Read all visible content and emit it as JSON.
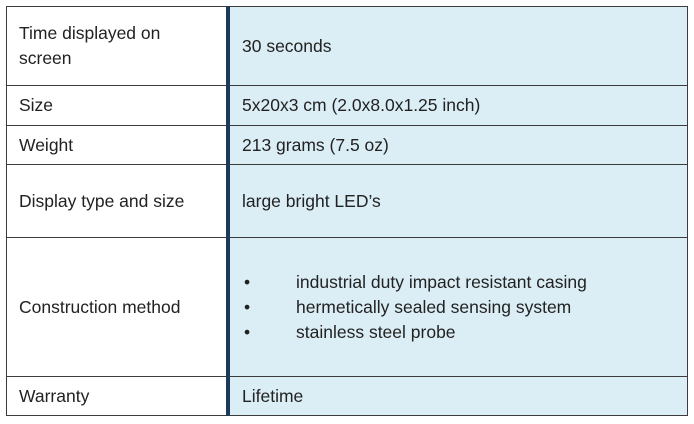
{
  "table": {
    "rows": [
      {
        "label": "Time displayed on screen",
        "value": "30 seconds"
      },
      {
        "label": "Size",
        "value": "5x20x3 cm (2.0x8.0x1.25 inch)"
      },
      {
        "label": "Weight",
        "value": "213 grams (7.5 oz)"
      },
      {
        "label": "Display type and size",
        "value": "large bright LED’s"
      },
      {
        "label": "Construction method",
        "items": [
          "industrial duty impact resistant casing",
          "hermetically sealed sensing system",
          "stainless steel probe"
        ]
      },
      {
        "label": "Warranty",
        "value": "Lifetime"
      }
    ]
  }
}
